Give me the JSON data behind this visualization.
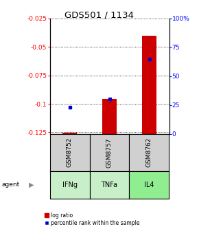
{
  "title": "GDS501 / 1134",
  "samples": [
    "GSM8752",
    "GSM8757",
    "GSM8762"
  ],
  "agents": [
    "IFNg",
    "TNFa",
    "IL4"
  ],
  "log_ratio": [
    -0.1255,
    -0.096,
    -0.04
  ],
  "log_ratio_base": -0.1265,
  "percentile": [
    23,
    30,
    65
  ],
  "ylim_left": [
    -0.1265,
    -0.025
  ],
  "ylim_right": [
    0,
    100
  ],
  "yticks_left": [
    -0.125,
    -0.1,
    -0.075,
    -0.05,
    -0.025
  ],
  "yticks_right": [
    0,
    25,
    50,
    75,
    100
  ],
  "ytick_labels_left": [
    "-0.125",
    "-0.1",
    "-0.075",
    "-0.05",
    "-0.025"
  ],
  "ytick_labels_right": [
    "0",
    "25",
    "50",
    "75",
    "100%"
  ],
  "bar_color": "#cc0000",
  "dot_color": "#0000cc",
  "sample_box_color": "#d0d0d0",
  "agent_box_colors": [
    "#c8f0c8",
    "#c8f0c8",
    "#90ee90"
  ],
  "bar_width": 0.35
}
